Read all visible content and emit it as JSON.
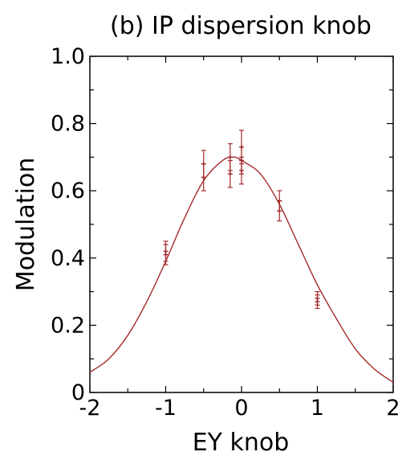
{
  "chart_data": {
    "type": "scatter",
    "title": "(b) IP dispersion knob",
    "xlabel": "EY knob",
    "ylabel": "Modulation",
    "xlim": [
      -2,
      2
    ],
    "ylim": [
      0,
      1.0
    ],
    "xticks": [
      -2,
      -1,
      0,
      1,
      2
    ],
    "xtick_labels": [
      "-2",
      "-1",
      "0",
      "1",
      "2"
    ],
    "yticks": [
      0,
      0.2,
      0.4,
      0.6,
      0.8,
      1.0
    ],
    "ytick_labels": [
      "0",
      "0.2",
      "0.4",
      "0.6",
      "0.8",
      "1.0"
    ],
    "grid": false,
    "series": [
      {
        "kind": "points-with-errorbars",
        "color": "#a52a2a",
        "points": [
          {
            "x": -1.0,
            "y": 0.42,
            "err": 0.03
          },
          {
            "x": -1.0,
            "y": 0.41,
            "err": 0.03
          },
          {
            "x": -0.5,
            "y": 0.68,
            "err": 0.04
          },
          {
            "x": -0.5,
            "y": 0.64,
            "err": 0.04
          },
          {
            "x": -0.15,
            "y": 0.7,
            "err": 0.04
          },
          {
            "x": -0.15,
            "y": 0.65,
            "err": 0.04
          },
          {
            "x": 0.0,
            "y": 0.73,
            "err": 0.05
          },
          {
            "x": 0.0,
            "y": 0.69,
            "err": 0.04
          },
          {
            "x": 0.0,
            "y": 0.66,
            "err": 0.04
          },
          {
            "x": 0.5,
            "y": 0.57,
            "err": 0.03
          },
          {
            "x": 0.5,
            "y": 0.54,
            "err": 0.03
          },
          {
            "x": 1.0,
            "y": 0.28,
            "err": 0.02
          },
          {
            "x": 1.0,
            "y": 0.27,
            "err": 0.02
          }
        ]
      },
      {
        "kind": "fit-curve",
        "color": "#a52a2a",
        "x": [
          -2.0,
          -1.75,
          -1.5,
          -1.25,
          -1.0,
          -0.75,
          -0.5,
          -0.25,
          -0.1,
          0.0,
          0.25,
          0.5,
          0.75,
          1.0,
          1.25,
          1.5,
          1.75,
          2.0
        ],
        "y": [
          0.06,
          0.1,
          0.17,
          0.27,
          0.39,
          0.52,
          0.63,
          0.69,
          0.7,
          0.69,
          0.65,
          0.56,
          0.44,
          0.32,
          0.22,
          0.13,
          0.07,
          0.03
        ]
      }
    ]
  }
}
